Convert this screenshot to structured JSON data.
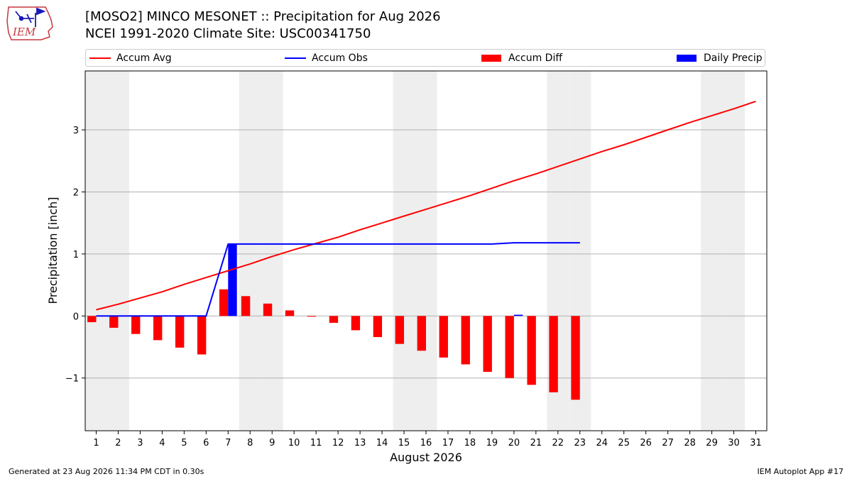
{
  "logo": {
    "text": "IEM"
  },
  "header": {
    "title_line1": "[MOSO2] MINCO MESONET :: Precipitation for Aug 2026",
    "title_line2": "NCEI 1991-2020 Climate Site: USC00341750"
  },
  "legend": {
    "accum_avg": "Accum Avg",
    "accum_obs": "Accum Obs",
    "accum_diff": "Accum Diff",
    "daily_precip": "Daily Precip"
  },
  "colors": {
    "accum_avg": "#ff0000",
    "accum_obs": "#0000ff",
    "accum_diff": "#ff0000",
    "daily_precip": "#0000ff",
    "weekend_shade": "#eeeeee",
    "gridline": "#b0b0b0"
  },
  "chart_data": {
    "type": "bar",
    "xlabel": "August 2026",
    "ylabel": "Precipitation [inch]",
    "xlim": [
      0.5,
      31.5
    ],
    "ylim": [
      -1.85,
      3.95
    ],
    "yticks": [
      -1,
      0,
      1,
      2,
      3
    ],
    "grid": true,
    "legend_position": "top",
    "days": [
      1,
      2,
      3,
      4,
      5,
      6,
      7,
      8,
      9,
      10,
      11,
      12,
      13,
      14,
      15,
      16,
      17,
      18,
      19,
      20,
      21,
      22,
      23,
      24,
      25,
      26,
      27,
      28,
      29,
      30,
      31
    ],
    "weekend_days": [
      1,
      2,
      8,
      9,
      15,
      16,
      22,
      23,
      29,
      30
    ],
    "series": [
      {
        "name": "Accum Avg",
        "kind": "line",
        "x": [
          1,
          2,
          3,
          4,
          5,
          6,
          7,
          8,
          9,
          10,
          11,
          12,
          13,
          14,
          15,
          16,
          17,
          18,
          19,
          20,
          21,
          22,
          23,
          24,
          25,
          26,
          27,
          28,
          29,
          30,
          31
        ],
        "values": [
          0.1,
          0.19,
          0.29,
          0.39,
          0.51,
          0.62,
          0.73,
          0.84,
          0.96,
          1.07,
          1.17,
          1.27,
          1.39,
          1.5,
          1.61,
          1.72,
          1.83,
          1.94,
          2.06,
          2.18,
          2.29,
          2.41,
          2.53,
          2.65,
          2.76,
          2.88,
          3.0,
          3.12,
          3.23,
          3.34,
          3.46
        ]
      },
      {
        "name": "Accum Obs",
        "kind": "line",
        "x": [
          1,
          2,
          3,
          4,
          5,
          6,
          7,
          8,
          9,
          10,
          11,
          12,
          13,
          14,
          15,
          16,
          17,
          18,
          19,
          20,
          21,
          22,
          23
        ],
        "values": [
          0.0,
          0.0,
          0.0,
          0.0,
          0.0,
          0.0,
          1.16,
          1.16,
          1.16,
          1.16,
          1.16,
          1.16,
          1.16,
          1.16,
          1.16,
          1.16,
          1.16,
          1.16,
          1.16,
          1.18,
          1.18,
          1.18,
          1.18
        ]
      },
      {
        "name": "Accum Diff",
        "kind": "bar",
        "x": [
          1,
          2,
          3,
          4,
          5,
          6,
          7,
          8,
          9,
          10,
          11,
          12,
          13,
          14,
          15,
          16,
          17,
          18,
          19,
          20,
          21,
          22,
          23
        ],
        "values": [
          -0.1,
          -0.19,
          -0.29,
          -0.39,
          -0.51,
          -0.62,
          0.43,
          0.32,
          0.2,
          0.09,
          -0.01,
          -0.11,
          -0.23,
          -0.34,
          -0.45,
          -0.56,
          -0.67,
          -0.78,
          -0.9,
          -1.0,
          -1.11,
          -1.23,
          -1.35
        ]
      },
      {
        "name": "Daily Precip",
        "kind": "bar",
        "x": [
          1,
          2,
          3,
          4,
          5,
          6,
          7,
          8,
          9,
          10,
          11,
          12,
          13,
          14,
          15,
          16,
          17,
          18,
          19,
          20,
          21,
          22,
          23
        ],
        "values": [
          0,
          0,
          0,
          0,
          0,
          0,
          1.16,
          0,
          0,
          0,
          0,
          0,
          0,
          0,
          0,
          0,
          0,
          0,
          0,
          0.02,
          0,
          0,
          0
        ]
      }
    ]
  },
  "footer": {
    "left": "Generated at 23 Aug 2026 11:34 PM CDT in 0.30s",
    "right": "IEM Autoplot App #17"
  }
}
